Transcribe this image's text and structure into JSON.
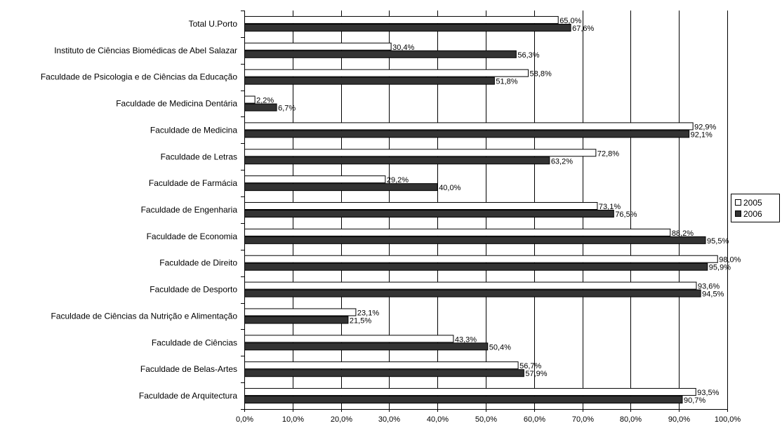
{
  "chart_data": {
    "type": "bar",
    "orientation": "horizontal",
    "categories": [
      "Total U.Porto",
      "Instituto de Ciências Biomédicas de Abel Salazar",
      "Faculdade de Psicologia e de Ciências da Educação",
      "Faculdade de Medicina Dentária",
      "Faculdade de Medicina",
      "Faculdade de Letras",
      "Faculdade de Farmácia",
      "Faculdade de Engenharia",
      "Faculdade de Economia",
      "Faculdade de Direito",
      "Faculdade de Desporto",
      "Faculdade de Ciências da Nutrição e Alimentação",
      "Faculdade de Ciências",
      "Faculdade de Belas-Artes",
      "Faculdade de Arquitectura"
    ],
    "series": [
      {
        "name": "2005",
        "color": "#ffffff",
        "values": [
          65.0,
          30.4,
          58.8,
          2.2,
          92.9,
          72.8,
          29.2,
          73.1,
          88.2,
          98.0,
          93.6,
          23.1,
          43.3,
          56.7,
          93.5
        ],
        "labels": [
          "65,0%",
          "30,4%",
          "58,8%",
          "2,2%",
          "92,9%",
          "72,8%",
          "29,2%",
          "73,1%",
          "88,2%",
          "98,0%",
          "93,6%",
          "23,1%",
          "43,3%",
          "56,7%",
          "93,5%"
        ]
      },
      {
        "name": "2006",
        "color": "#333333",
        "values": [
          67.6,
          56.3,
          51.8,
          6.7,
          92.1,
          63.2,
          40.0,
          76.5,
          95.5,
          95.9,
          94.5,
          21.5,
          50.4,
          57.9,
          90.7
        ],
        "labels": [
          "67,6%",
          "56,3%",
          "51,8%",
          "6,7%",
          "92,1%",
          "63,2%",
          "40,0%",
          "76,5%",
          "95,5%",
          "95,9%",
          "94,5%",
          "21,5%",
          "50,4%",
          "57,9%",
          "90,7%"
        ]
      }
    ],
    "xlim": [
      0,
      100
    ],
    "x_ticks": [
      "0,0%",
      "10,0%",
      "20,0%",
      "30,0%",
      "40,0%",
      "50,0%",
      "60,0%",
      "70,0%",
      "80,0%",
      "90,0%",
      "100,0%"
    ],
    "title": "",
    "xlabel": "",
    "ylabel": "",
    "grid": "vertical",
    "legend_position": "right"
  }
}
